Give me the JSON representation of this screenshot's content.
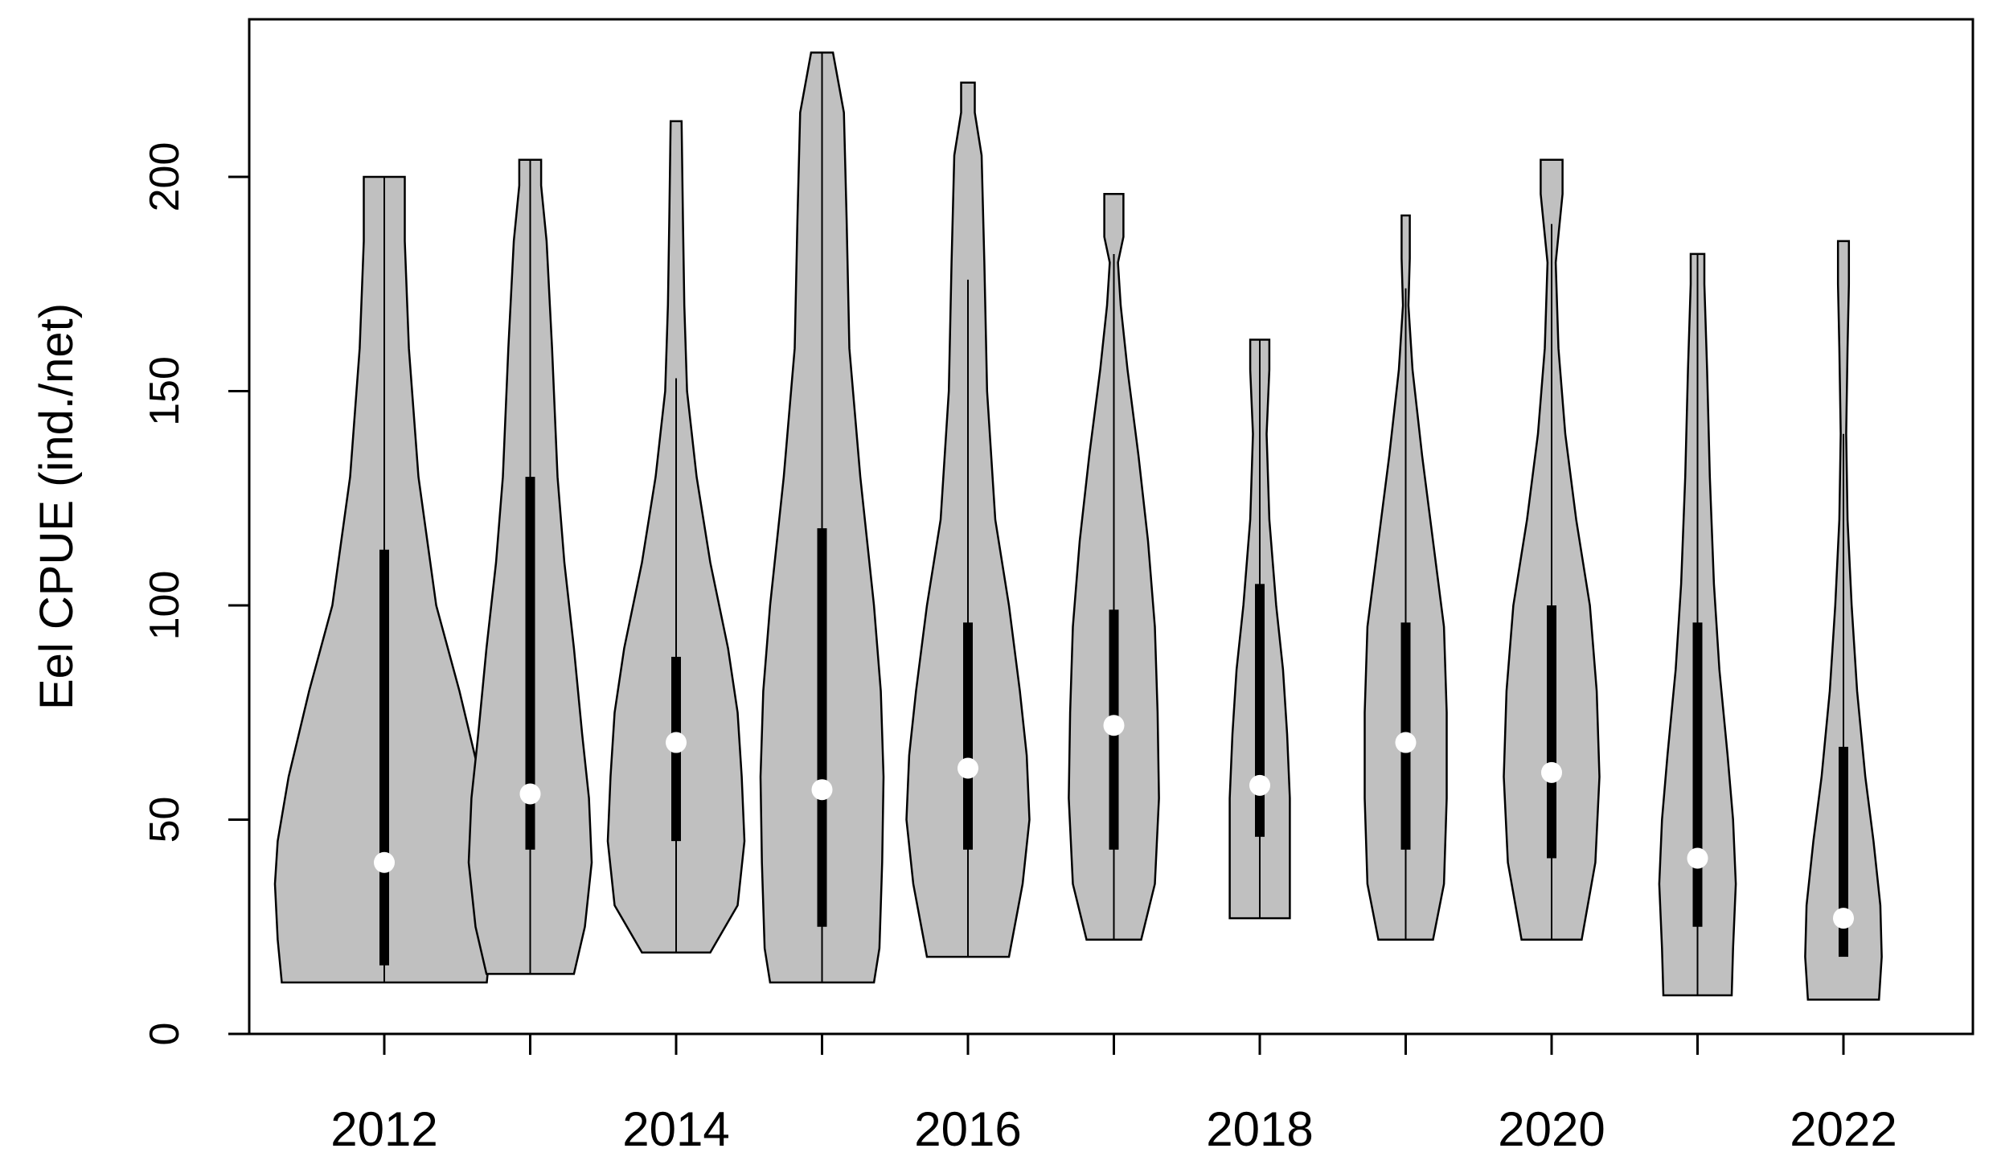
{
  "chart_data": {
    "type": "violin",
    "ylabel": "Eel CPUE (ind./net)",
    "xlabel": "",
    "ylim": [
      0,
      237
    ],
    "y_ticks": [
      0,
      50,
      100,
      150,
      200
    ],
    "x_tick_labels": [
      "2012",
      "2014",
      "2016",
      "2018",
      "2020",
      "2022"
    ],
    "grid": false,
    "colors": {
      "violin_fill": "#c0c0c0",
      "outline": "#000000",
      "median": "#ffffff"
    },
    "series": [
      {
        "category": "2012",
        "min": 12,
        "q1": 16,
        "median": 40,
        "q3": 113,
        "max": 200,
        "whisker_low": 12,
        "whisker_high": 200,
        "density": [
          [
            12,
            0.75
          ],
          [
            22,
            0.78
          ],
          [
            35,
            0.8
          ],
          [
            45,
            0.78
          ],
          [
            60,
            0.7
          ],
          [
            80,
            0.55
          ],
          [
            100,
            0.38
          ],
          [
            130,
            0.25
          ],
          [
            160,
            0.18
          ],
          [
            185,
            0.15
          ],
          [
            200,
            0.15
          ]
        ]
      },
      {
        "category": "2013",
        "min": 14,
        "q1": 43,
        "median": 56,
        "q3": 130,
        "max": 204,
        "whisker_low": 14,
        "whisker_high": 204,
        "density": [
          [
            14,
            0.32
          ],
          [
            25,
            0.4
          ],
          [
            40,
            0.45
          ],
          [
            55,
            0.43
          ],
          [
            70,
            0.38
          ],
          [
            90,
            0.32
          ],
          [
            110,
            0.25
          ],
          [
            130,
            0.2
          ],
          [
            160,
            0.16
          ],
          [
            185,
            0.12
          ],
          [
            198,
            0.08
          ],
          [
            204,
            0.08
          ]
        ]
      },
      {
        "category": "2014",
        "min": 19,
        "q1": 45,
        "median": 68,
        "q3": 88,
        "max": 213,
        "whisker_low": 19,
        "whisker_high": 153,
        "density": [
          [
            19,
            0.25
          ],
          [
            30,
            0.45
          ],
          [
            45,
            0.5
          ],
          [
            60,
            0.48
          ],
          [
            75,
            0.45
          ],
          [
            90,
            0.38
          ],
          [
            110,
            0.25
          ],
          [
            130,
            0.15
          ],
          [
            150,
            0.08
          ],
          [
            170,
            0.06
          ],
          [
            190,
            0.05
          ],
          [
            213,
            0.04
          ]
        ]
      },
      {
        "category": "2015",
        "min": 12,
        "q1": 25,
        "median": 57,
        "q3": 118,
        "max": 229,
        "whisker_low": 12,
        "whisker_high": 229,
        "density": [
          [
            12,
            0.38
          ],
          [
            20,
            0.42
          ],
          [
            40,
            0.44
          ],
          [
            60,
            0.45
          ],
          [
            80,
            0.43
          ],
          [
            100,
            0.38
          ],
          [
            130,
            0.28
          ],
          [
            160,
            0.2
          ],
          [
            190,
            0.18
          ],
          [
            215,
            0.16
          ],
          [
            229,
            0.08
          ]
        ]
      },
      {
        "category": "2016",
        "min": 18,
        "q1": 43,
        "median": 62,
        "q3": 96,
        "max": 222,
        "whisker_low": 18,
        "whisker_high": 176,
        "density": [
          [
            18,
            0.3
          ],
          [
            35,
            0.4
          ],
          [
            50,
            0.45
          ],
          [
            65,
            0.43
          ],
          [
            80,
            0.38
          ],
          [
            100,
            0.3
          ],
          [
            120,
            0.2
          ],
          [
            150,
            0.14
          ],
          [
            180,
            0.12
          ],
          [
            205,
            0.1
          ],
          [
            215,
            0.05
          ],
          [
            222,
            0.05
          ]
        ]
      },
      {
        "category": "2017",
        "min": 22,
        "q1": 43,
        "median": 72,
        "q3": 99,
        "max": 196,
        "whisker_low": 22,
        "whisker_high": 182,
        "density": [
          [
            22,
            0.2
          ],
          [
            35,
            0.3
          ],
          [
            55,
            0.33
          ],
          [
            75,
            0.32
          ],
          [
            95,
            0.3
          ],
          [
            115,
            0.25
          ],
          [
            135,
            0.18
          ],
          [
            155,
            0.1
          ],
          [
            170,
            0.05
          ],
          [
            180,
            0.03
          ],
          [
            186,
            0.07
          ],
          [
            196,
            0.07
          ]
        ]
      },
      {
        "category": "2018",
        "min": 27,
        "q1": 46,
        "median": 58,
        "q3": 105,
        "max": 162,
        "whisker_low": 27,
        "whisker_high": 162,
        "density": [
          [
            27,
            0.22
          ],
          [
            40,
            0.22
          ],
          [
            55,
            0.22
          ],
          [
            70,
            0.2
          ],
          [
            85,
            0.17
          ],
          [
            100,
            0.12
          ],
          [
            120,
            0.07
          ],
          [
            140,
            0.05
          ],
          [
            155,
            0.07
          ],
          [
            162,
            0.07
          ]
        ]
      },
      {
        "category": "2019",
        "min": 22,
        "q1": 43,
        "median": 68,
        "q3": 96,
        "max": 191,
        "whisker_low": 22,
        "whisker_high": 174,
        "density": [
          [
            22,
            0.2
          ],
          [
            35,
            0.28
          ],
          [
            55,
            0.3
          ],
          [
            75,
            0.3
          ],
          [
            95,
            0.28
          ],
          [
            115,
            0.2
          ],
          [
            135,
            0.12
          ],
          [
            155,
            0.05
          ],
          [
            170,
            0.02
          ],
          [
            181,
            0.03
          ],
          [
            191,
            0.03
          ]
        ]
      },
      {
        "category": "2020",
        "min": 22,
        "q1": 41,
        "median": 61,
        "q3": 100,
        "max": 204,
        "whisker_low": 22,
        "whisker_high": 189,
        "density": [
          [
            22,
            0.22
          ],
          [
            40,
            0.32
          ],
          [
            60,
            0.35
          ],
          [
            80,
            0.33
          ],
          [
            100,
            0.28
          ],
          [
            120,
            0.18
          ],
          [
            140,
            0.1
          ],
          [
            160,
            0.05
          ],
          [
            180,
            0.03
          ],
          [
            196,
            0.08
          ],
          [
            204,
            0.08
          ]
        ]
      },
      {
        "category": "2021",
        "min": 9,
        "q1": 25,
        "median": 41,
        "q3": 96,
        "max": 182,
        "whisker_low": 9,
        "whisker_high": 182,
        "density": [
          [
            9,
            0.25
          ],
          [
            20,
            0.26
          ],
          [
            35,
            0.28
          ],
          [
            50,
            0.26
          ],
          [
            65,
            0.22
          ],
          [
            85,
            0.16
          ],
          [
            105,
            0.12
          ],
          [
            130,
            0.09
          ],
          [
            155,
            0.07
          ],
          [
            175,
            0.05
          ],
          [
            182,
            0.05
          ]
        ]
      },
      {
        "category": "2022",
        "min": 8,
        "q1": 18,
        "median": 27,
        "q3": 67,
        "max": 185,
        "whisker_low": 18,
        "whisker_high": 140,
        "density": [
          [
            8,
            0.26
          ],
          [
            18,
            0.28
          ],
          [
            30,
            0.27
          ],
          [
            45,
            0.22
          ],
          [
            60,
            0.16
          ],
          [
            80,
            0.1
          ],
          [
            100,
            0.06
          ],
          [
            120,
            0.03
          ],
          [
            140,
            0.02
          ],
          [
            160,
            0.03
          ],
          [
            175,
            0.04
          ],
          [
            185,
            0.04
          ]
        ]
      }
    ]
  }
}
